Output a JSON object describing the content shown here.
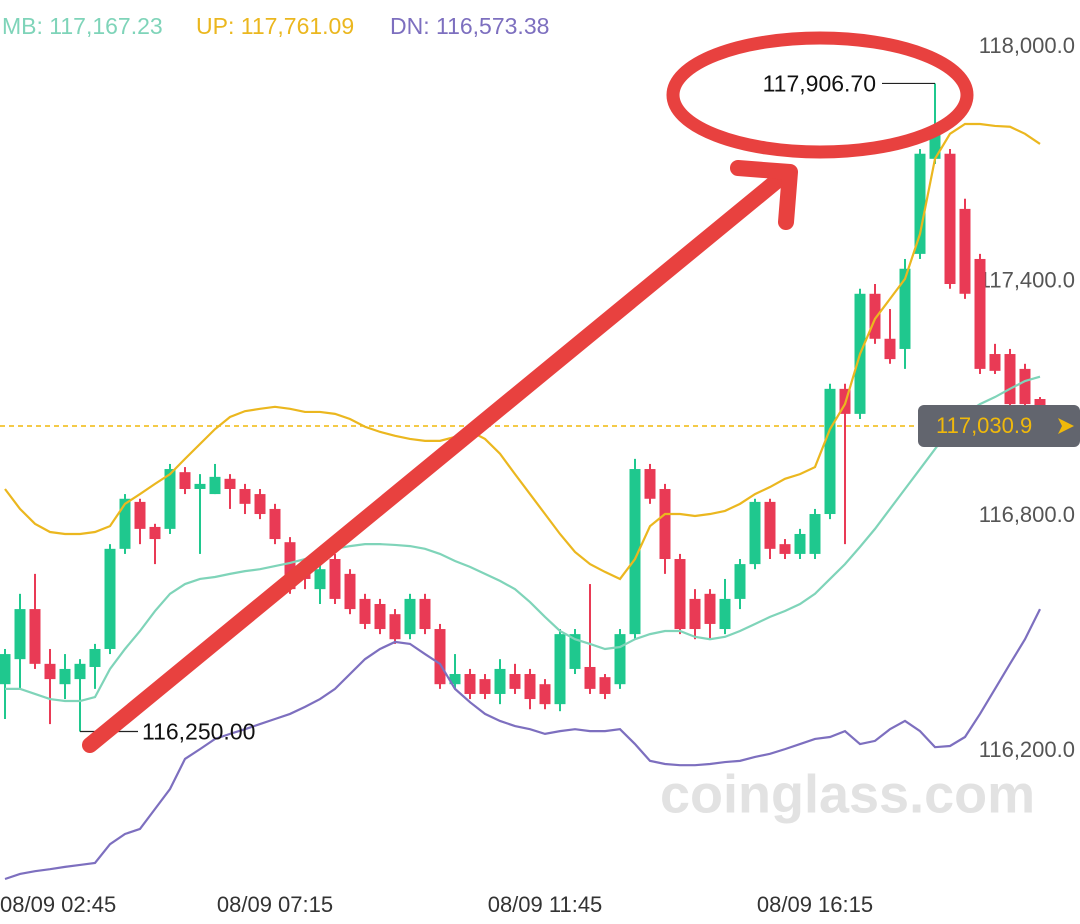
{
  "chart_data": {
    "type": "candlestick",
    "categories": [
      "08/09 02:45",
      null,
      null,
      null,
      null,
      null,
      null,
      null,
      null,
      null,
      null,
      null,
      null,
      null,
      null,
      null,
      null,
      null,
      "08/09 07:15",
      null,
      null,
      null,
      null,
      null,
      null,
      null,
      null,
      null,
      null,
      null,
      null,
      null,
      null,
      null,
      null,
      null,
      "08/09 11:45",
      null,
      null,
      null,
      null,
      null,
      null,
      null,
      null,
      null,
      null,
      null,
      null,
      null,
      null,
      null,
      null,
      null,
      "08/09 16:15",
      null,
      null,
      null,
      null,
      null,
      null,
      null,
      null,
      null,
      null,
      null,
      null,
      null,
      null,
      null
    ],
    "candles": {
      "open": [
        116371,
        116435,
        116563,
        116423,
        116371,
        116384,
        116415,
        116461,
        116717,
        116837,
        116773,
        116768,
        116913,
        116870,
        116857,
        116896,
        116870,
        116857,
        116819,
        116734,
        116678,
        116614,
        116691,
        116653,
        116589,
        116576,
        116550,
        116499,
        116589,
        116512,
        116371,
        116397,
        116384,
        116346,
        116397,
        116397,
        116371,
        116320,
        116410,
        116415,
        116389,
        116371,
        116499,
        116921,
        116870,
        116691,
        116589,
        116602,
        116512,
        116589,
        116678,
        116837,
        116729,
        116704,
        116704,
        116806,
        117126,
        117062,
        117369,
        117254,
        117228,
        117471,
        117714,
        117727,
        117586,
        117458,
        117215,
        117215,
        117177,
        117100
      ],
      "high": [
        116461,
        116602,
        116653,
        116461,
        116448,
        116435,
        116474,
        116729,
        116857,
        116845,
        116781,
        116934,
        116926,
        116908,
        116934,
        116908,
        116883,
        116870,
        116832,
        116747,
        116691,
        116678,
        116704,
        116665,
        116602,
        116589,
        116563,
        116602,
        116602,
        116525,
        116448,
        116410,
        116397,
        116435,
        116423,
        116410,
        116384,
        116512,
        116512,
        116627,
        116397,
        116512,
        116947,
        116934,
        116883,
        116704,
        116614,
        116614,
        116640,
        116691,
        116845,
        116845,
        116742,
        116768,
        116819,
        117139,
        117139,
        117382,
        117394,
        117330,
        117458,
        117739,
        117906.7,
        117739,
        117612,
        117471,
        117241,
        117228,
        117190,
        117105
      ],
      "low": [
        116282,
        116359,
        116410,
        116269,
        116333,
        116250,
        116359,
        116448,
        116704,
        116729,
        116678,
        116755,
        116857,
        116704,
        116857,
        116819,
        116806,
        116793,
        116729,
        116602,
        116614,
        116576,
        116576,
        116550,
        116512,
        116499,
        116474,
        116486,
        116499,
        116359,
        116359,
        116333,
        116333,
        116320,
        116346,
        116307,
        116307,
        116302,
        116397,
        116346,
        116333,
        116359,
        116486,
        116832,
        116653,
        116499,
        116486,
        116486,
        116499,
        116563,
        116665,
        116691,
        116691,
        116691,
        116691,
        116793,
        116729,
        117049,
        117241,
        117190,
        117177,
        117458,
        117701,
        117382,
        117356,
        117164,
        117164,
        117075,
        117075,
        117018
      ],
      "close": [
        116448,
        116563,
        116423,
        116384,
        116410,
        116423,
        116461,
        116717,
        116845,
        116768,
        116742,
        116921,
        116870,
        116883,
        116901,
        116870,
        116832,
        116806,
        116742,
        116614,
        116640,
        116665,
        116589,
        116563,
        116525,
        116512,
        116486,
        116589,
        116512,
        116371,
        116397,
        116346,
        116346,
        116410,
        116359,
        116333,
        116320,
        116499,
        116499,
        116359,
        116346,
        116499,
        116921,
        116845,
        116691,
        116512,
        116512,
        116525,
        116589,
        116678,
        116837,
        116717,
        116704,
        116755,
        116806,
        117126,
        117062,
        117369,
        117254,
        117202,
        117433,
        117727,
        117791,
        117394,
        117369,
        117177,
        117172,
        117087,
        117087,
        117030.9
      ],
      "up_color": "#1fc88e",
      "down_color": "#e93a55"
    },
    "series": [
      {
        "name": "MB: 117,167.23",
        "color": "#7fd4b9",
        "values": [
          116359,
          116359,
          116346,
          116333,
          116328,
          116328,
          116338,
          116410,
          116461,
          116507,
          116558,
          116602,
          116627,
          116640,
          116645,
          116653,
          116660,
          116665,
          116673,
          116681,
          116691,
          116704,
          116717,
          116724,
          116729,
          116729,
          116727,
          116724,
          116717,
          116704,
          116686,
          116671,
          116653,
          116635,
          116614,
          116581,
          116543,
          116507,
          116486,
          116474,
          116461,
          116466,
          116486,
          116499,
          116507,
          116507,
          116492,
          116486,
          116492,
          116507,
          116525,
          116543,
          116558,
          116576,
          116602,
          116640,
          116678,
          116722,
          116768,
          116819,
          116870,
          116921,
          116972,
          117023,
          117062,
          117087,
          117105,
          117126,
          117146,
          117157
        ]
      },
      {
        "name": "UP: 117,761.09",
        "color": "#ebb71f",
        "values": [
          116870,
          116819,
          116781,
          116760,
          116755,
          116755,
          116760,
          116775,
          116832,
          116857,
          116883,
          116908,
          116947,
          116985,
          117023,
          117054,
          117069,
          117075,
          117080,
          117075,
          117067,
          117067,
          117062,
          117049,
          117029,
          117016,
          117006,
          116998,
          116993,
          116993,
          117003,
          117018,
          116998,
          116960,
          116908,
          116857,
          116806,
          116755,
          116709,
          116678,
          116658,
          116640,
          116691,
          116775,
          116806,
          116806,
          116801,
          116806,
          116814,
          116832,
          116857,
          116875,
          116896,
          116908,
          116926,
          117023,
          117087,
          117215,
          117305,
          117356,
          117407,
          117522,
          117714,
          117778,
          117803,
          117803,
          117798,
          117796,
          117778,
          117752
        ]
      },
      {
        "name": "DN: 116,573.38",
        "color": "#7d6fbf",
        "values": [
          115873,
          115886,
          115893,
          115898,
          115904,
          115909,
          115914,
          115962,
          115988,
          116001,
          116052,
          116103,
          116180,
          116205,
          116231,
          116244,
          116256,
          116269,
          116282,
          116295,
          116313,
          116333,
          116359,
          116397,
          116435,
          116461,
          116479,
          116474,
          116448,
          116423,
          116359,
          116325,
          116295,
          116277,
          116264,
          116256,
          116244,
          116251,
          116256,
          116251,
          116251,
          116256,
          116218,
          116175,
          116167,
          116164,
          116164,
          116167,
          116172,
          116175,
          116185,
          116193,
          116205,
          116218,
          116231,
          116236,
          116251,
          116218,
          116226,
          116256,
          116277,
          116251,
          116210,
          116213,
          116236,
          116295,
          116359,
          116423,
          116486,
          116563
        ]
      }
    ],
    "ylim": [
      115850,
      118120
    ],
    "yticks": [
      {
        "value": 116200,
        "label": "116,200.0"
      },
      {
        "value": 116800,
        "label": "116,800.0"
      },
      {
        "value": 117400,
        "label": "117,400.0"
      },
      {
        "value": 118000,
        "label": "118,000.0"
      }
    ],
    "annotations": [
      {
        "text": "117,906.70",
        "value": 117906.7
      },
      {
        "text": "116,250.00",
        "value": 116250
      }
    ],
    "current_price": {
      "text": "117,030.9",
      "value": 117030.9,
      "color": "#f0b90b"
    },
    "watermark": "coinglass.com"
  }
}
